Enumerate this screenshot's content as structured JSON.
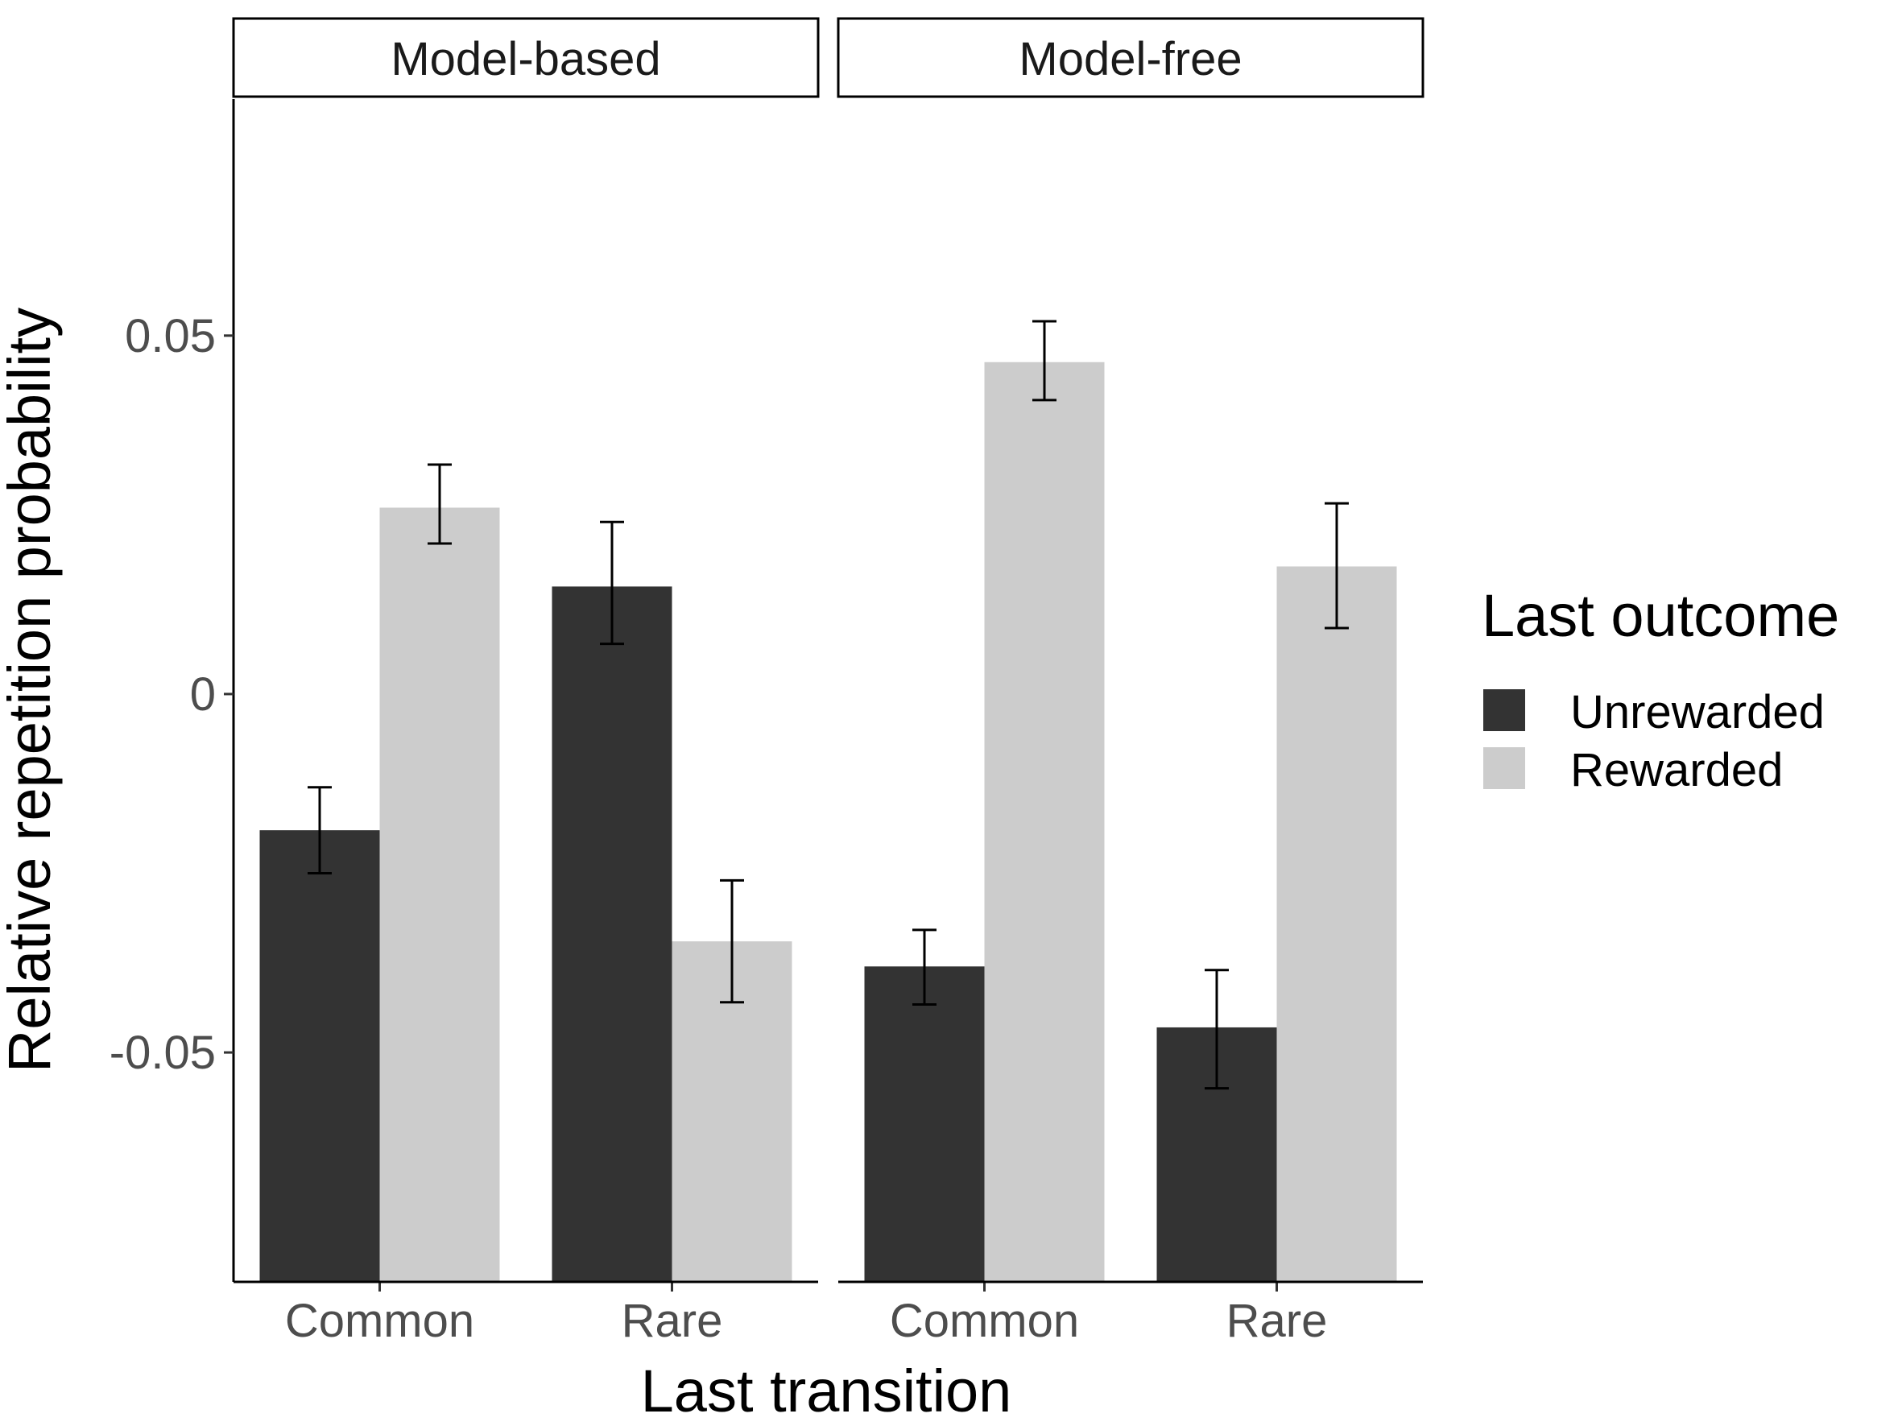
{
  "chart_data": {
    "type": "bar",
    "facets": [
      "Model-based",
      "Model-free"
    ],
    "categories": [
      "Common",
      "Rare"
    ],
    "xlabel": "Last transition",
    "ylabel": "Relative repetition probability",
    "ylim": [
      -0.082,
      0.083
    ],
    "yticks": [
      -0.05,
      0,
      0.05
    ],
    "ytick_labels": [
      "-0.05",
      "0",
      "0.05"
    ],
    "legend": {
      "title": "Last outcome",
      "position": "right",
      "entries": [
        "Unrewarded",
        "Rewarded"
      ]
    },
    "colors": {
      "Unrewarded": "#333333",
      "Rewarded": "#cccccc"
    },
    "panels": [
      {
        "facet": "Model-based",
        "series": [
          {
            "name": "Unrewarded",
            "values": [
              -0.019,
              0.015
            ],
            "err_low": [
              -0.025,
              0.007
            ],
            "err_high": [
              -0.013,
              0.024
            ]
          },
          {
            "name": "Rewarded",
            "values": [
              0.026,
              -0.0345
            ],
            "err_low": [
              0.021,
              -0.043
            ],
            "err_high": [
              0.032,
              -0.026
            ]
          }
        ]
      },
      {
        "facet": "Model-free",
        "series": [
          {
            "name": "Unrewarded",
            "values": [
              -0.038,
              -0.0465
            ],
            "err_low": [
              -0.0433,
              -0.055
            ],
            "err_high": [
              -0.0329,
              -0.0385
            ]
          },
          {
            "name": "Rewarded",
            "values": [
              0.0463,
              0.0178
            ],
            "err_low": [
              0.041,
              0.0092
            ],
            "err_high": [
              0.052,
              0.0266
            ]
          }
        ]
      }
    ]
  }
}
